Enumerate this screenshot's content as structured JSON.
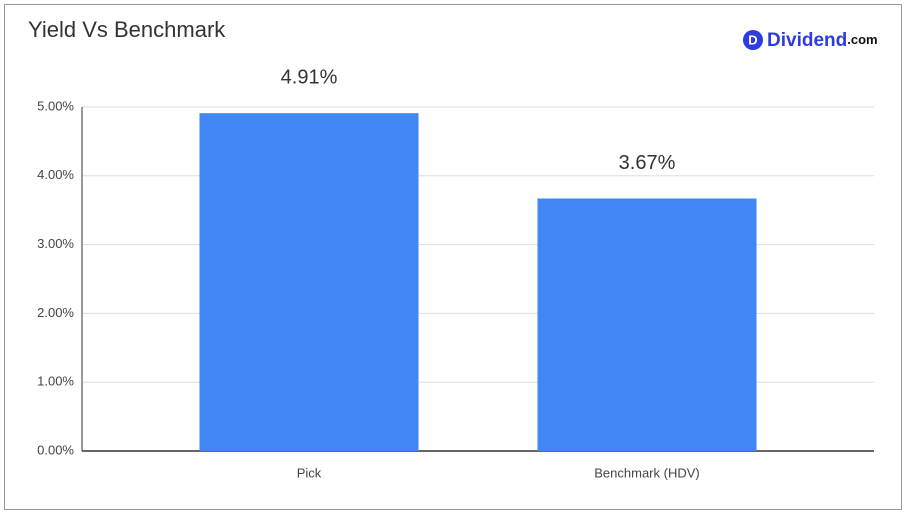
{
  "chart_data": {
    "type": "bar",
    "title": "Yield Vs Benchmark",
    "categories": [
      "Pick",
      "Benchmark (HDV)"
    ],
    "values": [
      4.91,
      3.67
    ],
    "value_labels": [
      "4.91%",
      "3.67%"
    ],
    "color": "#4285f4",
    "ylim": [
      0,
      5
    ],
    "yticks": [
      {
        "value": 0,
        "label": "0.00%"
      },
      {
        "value": 1,
        "label": "1.00%"
      },
      {
        "value": 2,
        "label": "2.00%"
      },
      {
        "value": 3,
        "label": "3.00%"
      },
      {
        "value": 4,
        "label": "4.00%"
      },
      {
        "value": 5,
        "label": "5.00%"
      }
    ],
    "grid": true
  },
  "logo": {
    "icon": "D",
    "name": "Dividend",
    "suffix": ".com"
  }
}
